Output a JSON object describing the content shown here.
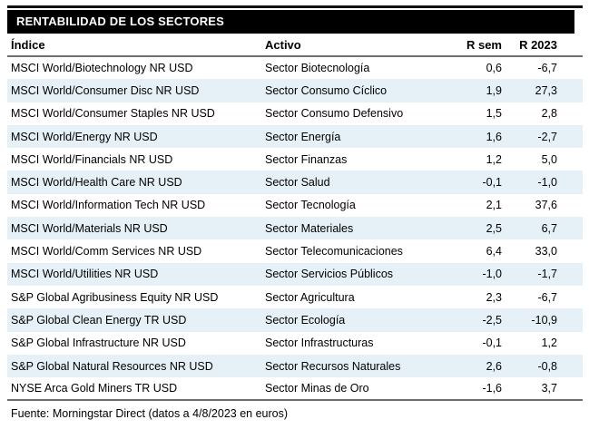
{
  "colors": {
    "band": "#e6f1f7",
    "rule_gray": "#6e6e6e",
    "title_bg": "#000000",
    "title_text": "#ffffff"
  },
  "chart_data": {
    "type": "table",
    "title": "RENTABILIDAD DE LOS SECTORES",
    "columns": [
      "Índice",
      "Activo",
      "R sem",
      "R 2023"
    ],
    "rows": [
      [
        "MSCI World/Biotechnology NR USD",
        "Sector Biotecnología",
        "0,6",
        "-6,7"
      ],
      [
        "MSCI World/Consumer Disc NR USD",
        "Sector Consumo Cíclico",
        "1,9",
        "27,3"
      ],
      [
        "MSCI World/Consumer Staples NR USD",
        "Sector Consumo Defensivo",
        "1,5",
        "2,8"
      ],
      [
        "MSCI World/Energy NR USD",
        "Sector Energía",
        "1,6",
        "-2,7"
      ],
      [
        "MSCI World/Financials NR USD",
        "Sector Finanzas",
        "1,2",
        "5,0"
      ],
      [
        "MSCI World/Health Care NR USD",
        "Sector Salud",
        "-0,1",
        "-1,0"
      ],
      [
        "MSCI World/Information Tech NR USD",
        "Sector Tecnología",
        "2,1",
        "37,6"
      ],
      [
        "MSCI World/Materials NR USD",
        "Sector Materiales",
        "2,5",
        "6,7"
      ],
      [
        "MSCI World/Comm Services NR USD",
        "Sector Telecomunicaciones",
        "6,4",
        "33,0"
      ],
      [
        "MSCI World/Utilities NR USD",
        "Sector Servicios Públicos",
        "-1,0",
        "-1,7"
      ],
      [
        "S&P Global Agribusiness Equity NR USD",
        "Sector Agricultura",
        "2,3",
        "-6,7"
      ],
      [
        "S&P Global Clean Energy TR USD",
        "Sector Ecología",
        "-2,5",
        "-10,9"
      ],
      [
        "S&P Global Infrastructure NR USD",
        "Sector Infrastructuras",
        "-0,1",
        "1,2"
      ],
      [
        "S&P Global Natural Resources NR USD",
        "Sector Recursos Naturales",
        "2,6",
        "-0,8"
      ],
      [
        "NYSE Arca Gold Miners TR USD",
        "Sector Minas de Oro",
        "-1,6",
        "3,7"
      ]
    ],
    "source_note": "Fuente: Morningstar Direct (datos a 4/8/2023 en euros)",
    "layout": {
      "banding": "alternate rows light blue starting at second row",
      "numeric_columns_alignment": "right",
      "decimal_separator": ","
    }
  }
}
